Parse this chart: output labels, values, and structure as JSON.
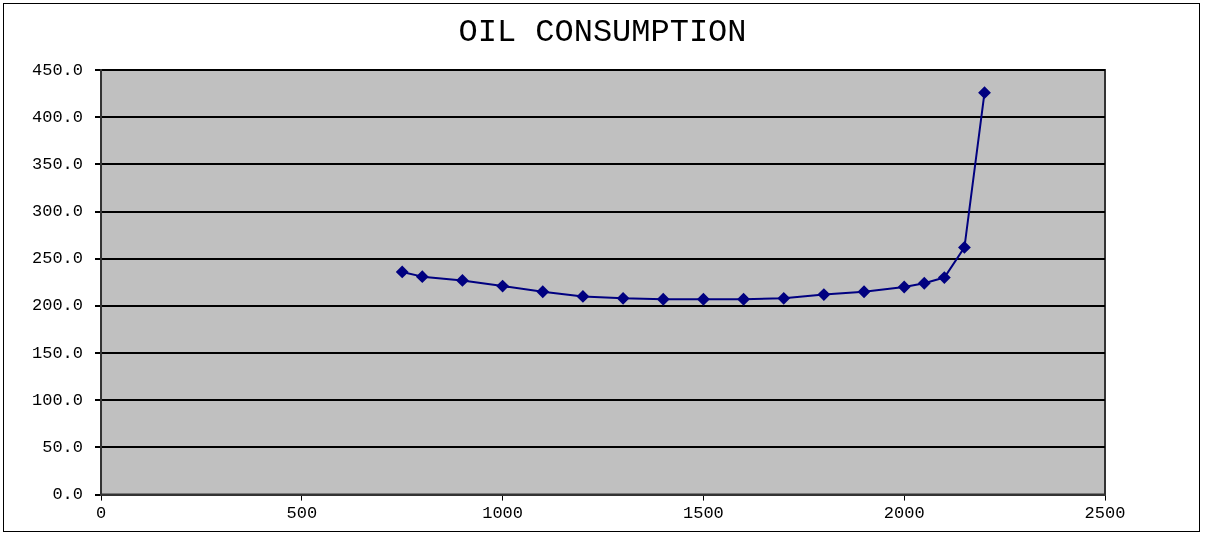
{
  "chart_data": {
    "type": "line",
    "title": "OIL CONSUMPTION",
    "x": [
      750,
      800,
      900,
      1000,
      1100,
      1200,
      1300,
      1400,
      1500,
      1600,
      1700,
      1800,
      1900,
      2000,
      2050,
      2100,
      2150,
      2200
    ],
    "series": [
      {
        "color": "#000080",
        "values": [
          236,
          231,
          227,
          221,
          215,
          210,
          208,
          207,
          207,
          207,
          208,
          212,
          215,
          220,
          224,
          230,
          262,
          426
        ]
      }
    ],
    "xlim": [
      0,
      2500
    ],
    "xticks": [
      0,
      500,
      1000,
      1500,
      2000,
      2500
    ],
    "ylim": [
      0,
      450
    ],
    "yticks": [
      {
        "value": 0,
        "label": "0.0"
      },
      {
        "value": 50,
        "label": "50.0"
      },
      {
        "value": 100,
        "label": "100.0"
      },
      {
        "value": 150,
        "label": "150.0"
      },
      {
        "value": 200,
        "label": "200.0"
      },
      {
        "value": 250,
        "label": "250.0"
      },
      {
        "value": 300,
        "label": "300.0"
      },
      {
        "value": 350,
        "label": "350.0"
      },
      {
        "value": 400,
        "label": "400.0"
      },
      {
        "value": 450,
        "label": "450.0"
      }
    ],
    "grid": "y",
    "legend": false,
    "marker": "diamond",
    "line_style": "solid"
  }
}
